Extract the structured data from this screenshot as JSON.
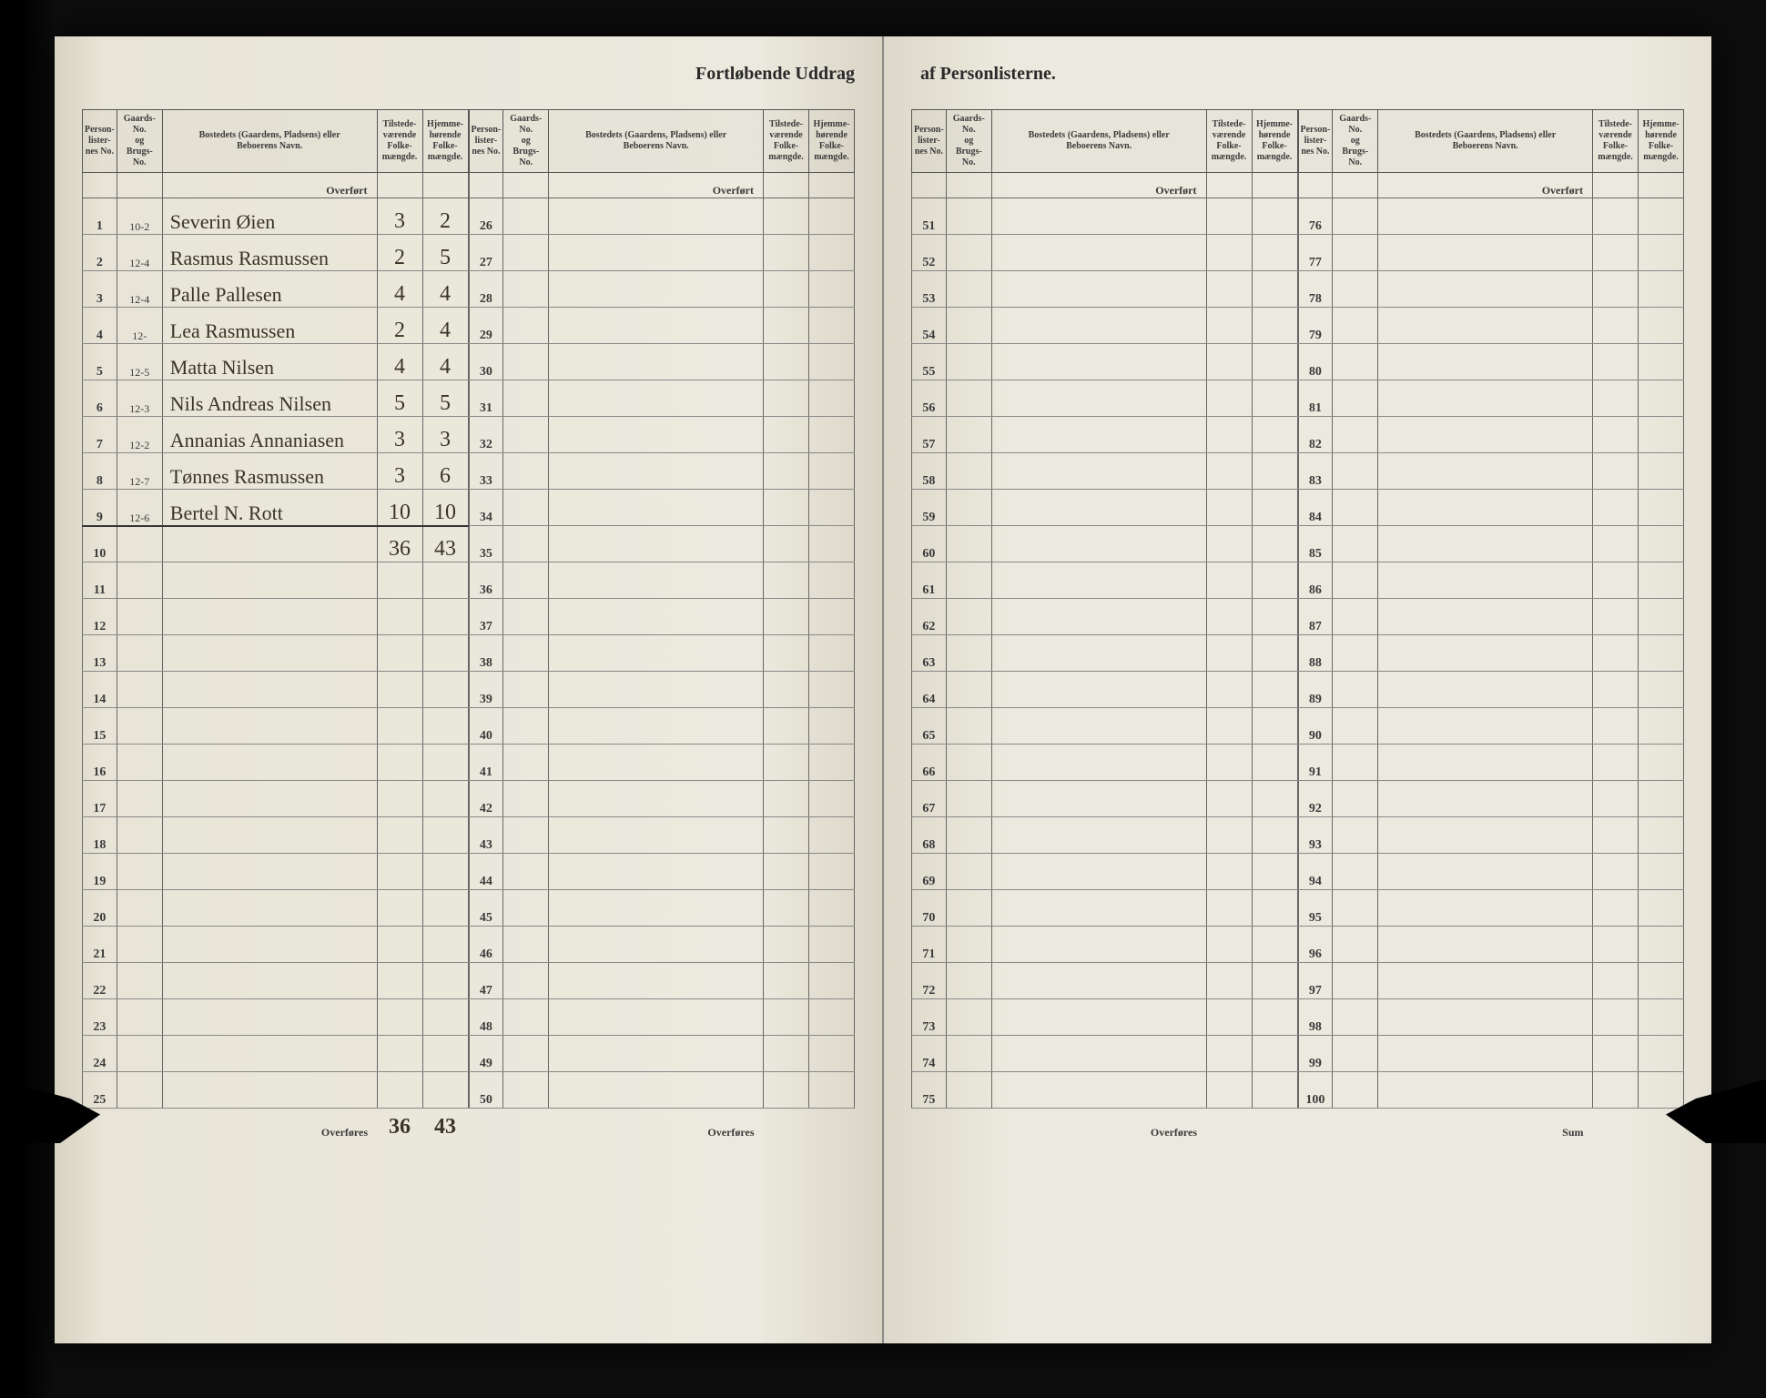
{
  "title_left": "Fortløbende Uddrag",
  "title_right": "af Personlisterne.",
  "headers": {
    "personlister": "Person-\nlister-\nnes No.",
    "gaards": "Gaards-\nNo.\nog\nBrugs-\nNo.",
    "bosted": "Bostedets (Gaardens, Pladsens) eller\nBeboerens Navn.",
    "tilstede": "Tilstede-\nværende\nFolke-\nmængde.",
    "hjemme": "Hjemme-\nhørende\nFolke-\nmængde."
  },
  "overfort": "Overført",
  "overfores": "Overføres",
  "sum": "Sum",
  "entries": [
    {
      "no": "1",
      "gaard": "10-2",
      "name": "Severin Øien",
      "t": "3",
      "h": "2"
    },
    {
      "no": "2",
      "gaard": "12-4",
      "name": "Rasmus Rasmussen",
      "t": "2",
      "h": "5"
    },
    {
      "no": "3",
      "gaard": "12-4",
      "name": "Palle Pallesen",
      "t": "4",
      "h": "4"
    },
    {
      "no": "4",
      "gaard": "12-",
      "name": "Lea Rasmussen",
      "t": "2",
      "h": "4"
    },
    {
      "no": "5",
      "gaard": "12-5",
      "name": "Matta Nilsen",
      "t": "4",
      "h": "4"
    },
    {
      "no": "6",
      "gaard": "12-3",
      "name": "Nils Andreas Nilsen",
      "t": "5",
      "h": "5"
    },
    {
      "no": "7",
      "gaard": "12-2",
      "name": "Annanias Annaniasen",
      "t": "3",
      "h": "3"
    },
    {
      "no": "8",
      "gaard": "12-7",
      "name": "Tønnes Rasmussen",
      "t": "3",
      "h": "6"
    },
    {
      "no": "9",
      "gaard": "12-6",
      "name": "Bertel N. Rott",
      "t": "10",
      "h": "10"
    }
  ],
  "subtotal": {
    "t": "36",
    "h": "43"
  },
  "footer_total": {
    "t": "36",
    "h": "43"
  },
  "blocks": [
    {
      "start": 1,
      "end": 25,
      "footer": "overfores"
    },
    {
      "start": 26,
      "end": 50,
      "footer": "overfores"
    },
    {
      "start": 51,
      "end": 75,
      "footer": "overfores"
    },
    {
      "start": 76,
      "end": 100,
      "footer": "sum"
    }
  ],
  "colors": {
    "paper": "#eceade",
    "ink": "#2a2a2a",
    "handwriting": "#3a3326",
    "rule": "#666"
  }
}
